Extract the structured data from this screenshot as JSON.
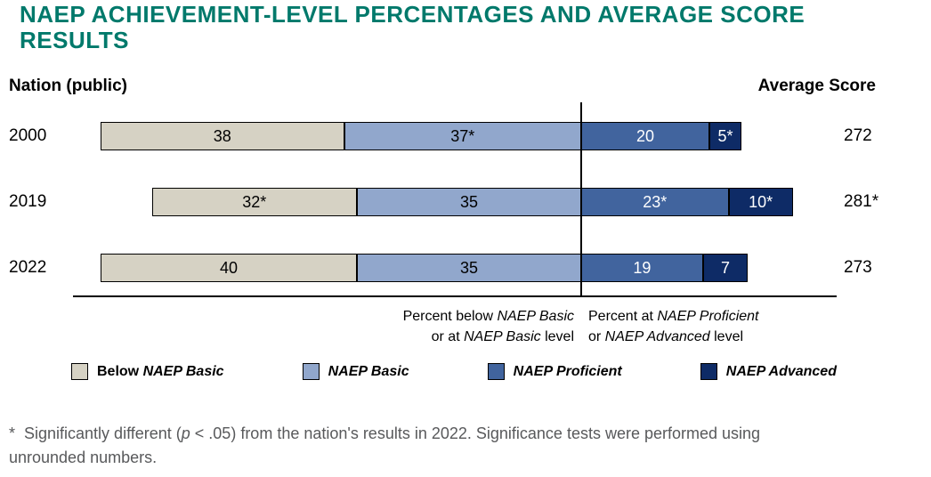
{
  "page": {
    "title": "NAEP ACHIEVEMENT-LEVEL PERCENTAGES AND AVERAGE SCORE RESULTS",
    "title_color": "#00796b",
    "left_header": "Nation (public)",
    "right_header": "Average Score"
  },
  "chart_data": {
    "type": "bar",
    "subtype": "diverging_stacked_horizontal",
    "unit": "percent",
    "categories": [
      "2000",
      "2019",
      "2022"
    ],
    "series": [
      {
        "name": "Below NAEP Basic",
        "side": "left",
        "color": "#d6d2c4",
        "text_color": "#000000",
        "values": [
          38,
          32,
          40
        ],
        "labels": [
          "38",
          "32*",
          "40"
        ]
      },
      {
        "name": "NAEP Basic",
        "side": "left",
        "color": "#91a7cc",
        "text_color": "#000000",
        "values": [
          37,
          35,
          35
        ],
        "labels": [
          "37*",
          "35",
          "35"
        ]
      },
      {
        "name": "NAEP Proficient",
        "side": "right",
        "color": "#41649e",
        "text_color": "#ffffff",
        "values": [
          20,
          23,
          19
        ],
        "labels": [
          "20",
          "23*",
          "19"
        ]
      },
      {
        "name": "NAEP Advanced",
        "side": "right",
        "color": "#0e2b66",
        "text_color": "#ffffff",
        "values": [
          5,
          10,
          7
        ],
        "labels": [
          "5*",
          "10*",
          "7"
        ]
      }
    ],
    "average_scores": [
      "272",
      "281*",
      "273"
    ],
    "axis_annotations": {
      "left": [
        [
          {
            "t": "Percent below "
          },
          {
            "t": "NAEP Basic",
            "i": true
          }
        ],
        [
          {
            "t": "or at "
          },
          {
            "t": "NAEP Basic",
            "i": true
          },
          {
            "t": " level"
          }
        ]
      ],
      "right": [
        [
          {
            "t": "Percent at "
          },
          {
            "t": "NAEP Proficient",
            "i": true
          }
        ],
        [
          {
            "t": "or "
          },
          {
            "t": "NAEP Advanced",
            "i": true
          },
          {
            "t": " level"
          }
        ]
      ]
    },
    "legend": [
      {
        "color": "#d6d2c4",
        "parts": [
          {
            "t": "Below "
          },
          {
            "t": "NAEP Basic",
            "i": true
          }
        ]
      },
      {
        "color": "#91a7cc",
        "parts": [
          {
            "t": "NAEP Basic",
            "i": true
          }
        ]
      },
      {
        "color": "#41649e",
        "parts": [
          {
            "t": "NAEP Proficient",
            "i": true
          }
        ]
      },
      {
        "color": "#0e2b66",
        "parts": [
          {
            "t": "NAEP Advanced",
            "i": true
          }
        ]
      }
    ]
  },
  "footnote": {
    "parts": [
      {
        "t": "*  Significantly different ("
      },
      {
        "t": "p",
        "i": true
      },
      {
        "t": " < .05) from the nation's results in 2022. Significance tests were performed using unrounded numbers."
      }
    ]
  }
}
